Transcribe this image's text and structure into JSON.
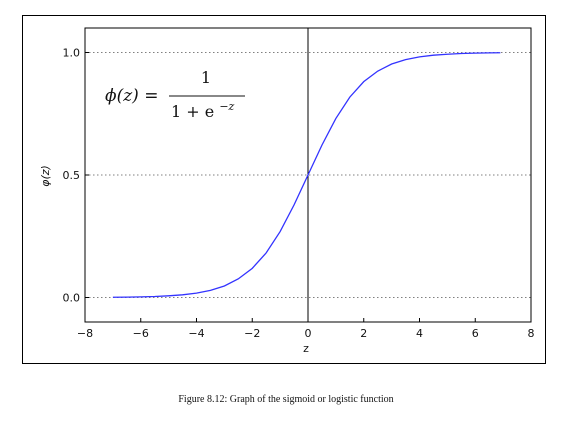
{
  "caption": "Figure 8.12: Graph of the sigmoid or logistic function",
  "chart_data": {
    "type": "line",
    "xlabel": "z",
    "ylabel": "φ(z)",
    "xlim": [
      -8,
      8
    ],
    "ylim": [
      -0.1,
      1.1
    ],
    "x_ticks": [
      "−8",
      "−6",
      "−4",
      "−2",
      "0",
      "2",
      "4",
      "6",
      "8"
    ],
    "y_ticks": [
      "0.0",
      "0.5",
      "1.0"
    ],
    "grid": "horizontal dotted lines at 0.0, 0.5, 1.0",
    "vertical_line_at": 0,
    "line_color": "#3333ff",
    "x": [
      -7,
      -6.5,
      -6,
      -5.5,
      -5,
      -4.5,
      -4,
      -3.5,
      -3,
      -2.5,
      -2,
      -1.5,
      -1,
      -0.5,
      0,
      0.5,
      1,
      1.5,
      2,
      2.5,
      3,
      3.5,
      4,
      4.5,
      5,
      5.5,
      6,
      6.5,
      6.9
    ],
    "y": [
      0.001,
      0.0015,
      0.0025,
      0.004,
      0.007,
      0.011,
      0.018,
      0.029,
      0.047,
      0.076,
      0.119,
      0.182,
      0.269,
      0.378,
      0.5,
      0.622,
      0.731,
      0.818,
      0.881,
      0.924,
      0.953,
      0.971,
      0.982,
      0.989,
      0.993,
      0.996,
      0.9975,
      0.9985,
      0.999
    ],
    "annotation": {
      "lhs": "ϕ(z) =",
      "numerator": "1",
      "denominator_base": "1 + e",
      "denominator_exponent": "−z"
    }
  }
}
